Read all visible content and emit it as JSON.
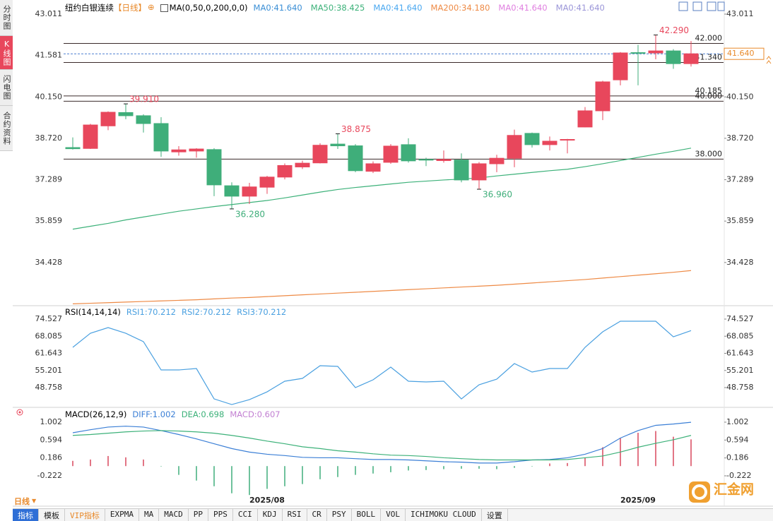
{
  "sidebar": [
    "分时图",
    "K线图",
    "闪电图",
    "合约资料"
  ],
  "period_button": "日线",
  "toolbar": [
    "指标",
    "模板",
    "VIP指标",
    "EXPMA",
    "MA",
    "MACD",
    "PP",
    "PPS",
    "CCI",
    "KDJ",
    "RSI",
    "CR",
    "PSY",
    "BOLL",
    "VOL",
    "ICHIMOKU CLOUD",
    "设置"
  ],
  "logo": "汇金网",
  "chart_data": [
    {
      "type": "candlestick",
      "title": "纽约白银连续",
      "period": "【日线】",
      "indicator": "MA(0,50,0,200,0,0)",
      "up_color": "#e8475c",
      "down_color": "#3fae7a",
      "open": [
        38.4,
        38.37,
        39.15,
        39.61,
        39.5,
        39.23,
        38.25,
        38.28,
        38.33,
        37.08,
        36.72,
        37.03,
        37.38,
        37.73,
        37.87,
        38.52,
        38.46,
        37.58,
        37.89,
        38.5,
        37.99,
        37.95,
        37.97,
        37.28,
        37.84,
        38.03,
        38.89,
        38.5,
        38.67,
        39.11,
        39.67,
        40.74,
        41.68,
        41.67,
        41.74,
        41.3
      ],
      "high": [
        38.75,
        39.22,
        39.65,
        39.91,
        39.55,
        39.45,
        38.45,
        38.38,
        38.38,
        37.2,
        37.18,
        37.42,
        37.85,
        37.95,
        38.55,
        38.875,
        38.52,
        37.92,
        38.52,
        38.72,
        38.05,
        38.3,
        38.2,
        37.9,
        38.15,
        39.02,
        38.92,
        38.78,
        38.7,
        39.8,
        40.71,
        41.7,
        41.95,
        42.29,
        41.8,
        42.08
      ],
      "low": [
        38.33,
        38.35,
        39.0,
        39.38,
        38.92,
        38.08,
        38.12,
        38.05,
        36.72,
        36.28,
        36.45,
        36.8,
        37.3,
        37.66,
        37.85,
        38.35,
        37.55,
        37.52,
        37.84,
        37.88,
        37.76,
        37.88,
        37.2,
        36.96,
        37.55,
        37.72,
        38.4,
        38.3,
        38.2,
        39.1,
        39.35,
        40.55,
        40.55,
        41.45,
        41.12,
        41.2
      ],
      "close": [
        38.36,
        39.18,
        39.62,
        39.5,
        39.23,
        38.28,
        38.32,
        38.35,
        37.11,
        36.72,
        37.04,
        37.38,
        37.78,
        37.86,
        38.48,
        38.46,
        37.6,
        37.84,
        38.45,
        37.94,
        37.98,
        37.99,
        37.28,
        37.84,
        38.03,
        38.82,
        38.5,
        38.62,
        38.68,
        39.67,
        40.67,
        41.67,
        41.66,
        41.74,
        41.3,
        41.64
      ],
      "series": [
        {
          "name": "MA0:41.640",
          "color": "#3b8fd6"
        },
        {
          "name": "MA50:38.425",
          "color": "#3cb179",
          "values": [
            35.58,
            35.68,
            35.78,
            35.9,
            36.0,
            36.1,
            36.2,
            36.28,
            36.36,
            36.43,
            36.5,
            36.57,
            36.66,
            36.76,
            36.86,
            36.95,
            37.02,
            37.08,
            37.14,
            37.2,
            37.24,
            37.28,
            37.31,
            37.35,
            37.42,
            37.48,
            37.54,
            37.6,
            37.65,
            37.74,
            37.84,
            37.95,
            38.06,
            38.17,
            38.27,
            38.38
          ]
        },
        {
          "name": "MA0:41.640",
          "color": "#4aa8f0"
        },
        {
          "name": "MA200:34.180",
          "color": "#ee8a45",
          "values": [
            33.0,
            33.02,
            33.04,
            33.06,
            33.08,
            33.1,
            33.12,
            33.14,
            33.17,
            33.2,
            33.22,
            33.25,
            33.28,
            33.31,
            33.34,
            33.37,
            33.4,
            33.43,
            33.46,
            33.49,
            33.52,
            33.55,
            33.58,
            33.61,
            33.64,
            33.68,
            33.72,
            33.76,
            33.8,
            33.84,
            33.89,
            33.94,
            33.99,
            34.04,
            34.09,
            34.15
          ]
        },
        {
          "name": "MA0:41.640",
          "color": "#e080e0"
        },
        {
          "name": "MA0:41.640",
          "color": "#9a95d8"
        }
      ],
      "ylim": [
        32.96,
        43.255
      ],
      "yticks": [
        43.011,
        41.581,
        {
          "value": 40.15,
          "label": "40.150"
        },
        {
          "value": 38.72,
          "label": "38.720"
        },
        37.289,
        35.859,
        34.428
      ],
      "hlines": [
        {
          "value": 42,
          "label": "42.000"
        },
        {
          "value": 41.34,
          "label": "41.340"
        },
        40.185,
        {
          "value": 40,
          "label": "40.000"
        },
        {
          "value": 38,
          "label": "38.000"
        }
      ],
      "current": {
        "value": 41.64,
        "label": "41.640"
      },
      "annotations": [
        {
          "value": 42.29,
          "label": "42.290"
        },
        {
          "value": 39.91,
          "label": "39.910"
        },
        38.875,
        {
          "value": 36.28,
          "label": "36.280"
        },
        {
          "value": 36.96,
          "label": "36.960"
        }
      ]
    },
    {
      "type": "line",
      "title": "RSI(14,14,14)",
      "series": [
        {
          "name": "RSI1:70.212",
          "color": "#4aa0e0",
          "values": [
            63.9,
            69.21,
            71.34,
            69.21,
            66.03,
            55.4,
            55.4,
            55.93,
            44.5,
            42.38,
            44.24,
            47.16,
            51.15,
            52.21,
            57.0,
            56.73,
            48.75,
            51.68,
            56.46,
            51.15,
            50.88,
            51.15,
            44.5,
            49.82,
            51.94,
            57.79,
            54.6,
            55.93,
            55.93,
            63.9,
            69.74,
            73.73,
            73.73,
            73.73,
            67.88,
            70.21
          ]
        },
        {
          "name": "RSI2:70.212",
          "color": "#4aa0e0"
        },
        {
          "name": "RSI3:70.212",
          "color": "#4aa0e0"
        }
      ],
      "ylim": [
        41.59,
        79.31
      ],
      "yticks": [
        74.527,
        68.085,
        61.643,
        55.201,
        48.758
      ]
    },
    {
      "type": "macd",
      "title": "MACD(26,12,9)",
      "categories": [
        null,
        null,
        null,
        null,
        null,
        null,
        null,
        null,
        null,
        null,
        null,
        "2025/08",
        null,
        null,
        null,
        null,
        null,
        null,
        null,
        null,
        null,
        null,
        null,
        null,
        null,
        null,
        null,
        null,
        null,
        null,
        null,
        null,
        "2025/09",
        null,
        null,
        null
      ],
      "up_color": "#d9475c",
      "down_color": "#3fae7a",
      "series": [
        {
          "name": "DIFF:1.002",
          "color": "#3b7fd6",
          "values": [
            0.76,
            0.83,
            0.89,
            0.91,
            0.89,
            0.81,
            0.72,
            0.62,
            0.51,
            0.4,
            0.32,
            0.27,
            0.24,
            0.2,
            0.19,
            0.19,
            0.17,
            0.15,
            0.15,
            0.14,
            0.12,
            0.1,
            0.09,
            0.07,
            0.07,
            0.1,
            0.14,
            0.15,
            0.19,
            0.27,
            0.4,
            0.64,
            0.81,
            0.93,
            0.96,
            1.0
          ]
        },
        {
          "name": "DEA:0.698",
          "color": "#3cb179",
          "values": [
            0.7,
            0.72,
            0.75,
            0.78,
            0.8,
            0.81,
            0.8,
            0.78,
            0.75,
            0.7,
            0.64,
            0.57,
            0.51,
            0.44,
            0.4,
            0.35,
            0.32,
            0.28,
            0.25,
            0.24,
            0.22,
            0.19,
            0.17,
            0.15,
            0.14,
            0.14,
            0.14,
            0.14,
            0.15,
            0.19,
            0.23,
            0.32,
            0.43,
            0.52,
            0.6,
            0.7
          ]
        },
        {
          "name": "MACD:0.607",
          "color": "#c27fd2",
          "values": [
            0.12,
            0.15,
            0.23,
            0.2,
            0.15,
            -0.01,
            -0.2,
            -0.33,
            -0.46,
            -0.62,
            -0.66,
            -0.52,
            -0.46,
            -0.41,
            -0.3,
            -0.25,
            -0.2,
            -0.17,
            -0.14,
            -0.1,
            -0.09,
            -0.07,
            -0.06,
            -0.06,
            -0.07,
            -0.04,
            -0.01,
            0.06,
            0.07,
            0.19,
            0.43,
            0.64,
            0.76,
            0.8,
            0.67,
            0.61
          ]
        }
      ],
      "ylim": [
        -0.721,
        1.324
      ],
      "yticks": [
        1.002,
        0.594,
        0.186,
        -0.222
      ]
    }
  ]
}
